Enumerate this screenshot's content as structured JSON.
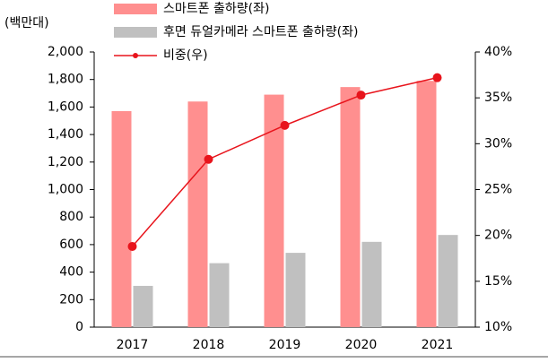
{
  "chart_data": {
    "type": "bar_line",
    "y_label": "(백만대)",
    "categories": [
      "2017",
      "2018",
      "2019",
      "2020",
      "2021"
    ],
    "series": [
      {
        "name": "스마트폰 출하량(좌)",
        "color": "#ff8f8f",
        "type": "bar",
        "values": [
          1570,
          1640,
          1690,
          1745,
          1790
        ]
      },
      {
        "name": "후면 듀얼카메라 스마트폰 출하량(좌)",
        "color": "#c0c0c0",
        "type": "bar",
        "values": [
          300,
          465,
          540,
          620,
          670
        ]
      },
      {
        "name": "비중(우)",
        "color": "#e8141c",
        "type": "line",
        "axis": "y2",
        "values": [
          18.8,
          28.3,
          32.0,
          35.3,
          37.2
        ]
      }
    ],
    "ylim": [
      0,
      2000
    ],
    "yticks": [
      0,
      200,
      400,
      600,
      800,
      {
        "value": 1000,
        "label": "1,000"
      },
      {
        "value": 1200,
        "label": "1,200"
      },
      {
        "value": 1400,
        "label": "1,400"
      },
      {
        "value": 1600,
        "label": "1,600"
      },
      {
        "value": 1800,
        "label": "1,800"
      },
      {
        "value": 2000,
        "label": "2,000"
      }
    ],
    "y2lim": [
      10,
      40
    ],
    "y2ticks": [
      {
        "value": 10,
        "label": "10%"
      },
      {
        "value": 15,
        "label": "15%"
      },
      {
        "value": 20,
        "label": "20%"
      },
      {
        "value": 25,
        "label": "25%"
      },
      {
        "value": 30,
        "label": "30%"
      },
      {
        "value": 35,
        "label": "35%"
      },
      {
        "value": 40,
        "label": "40%"
      }
    ],
    "grid": false
  }
}
